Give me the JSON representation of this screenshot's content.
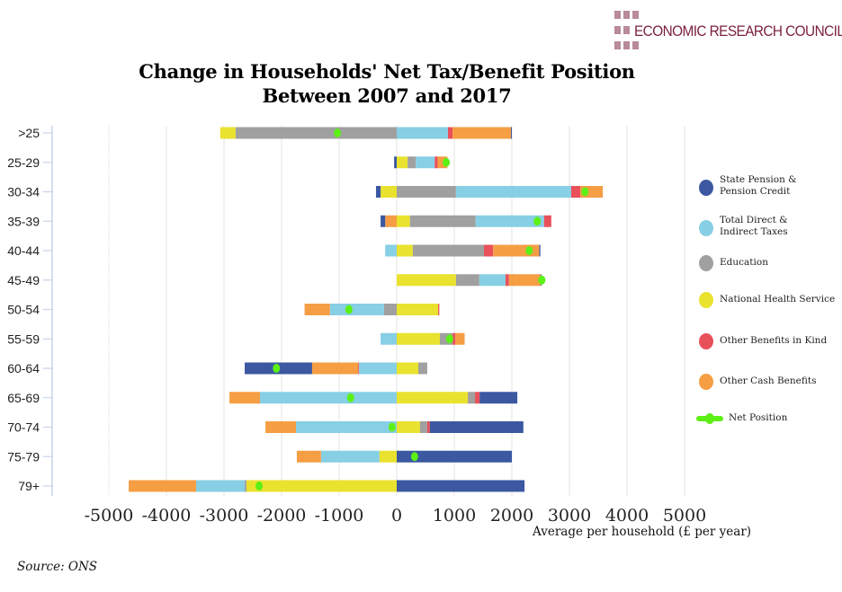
{
  "logo": {
    "text": "ECONOMIC RESEARCH COUNCIL",
    "color": "#7a1f3d"
  },
  "title_lines": [
    "Change in Households' Net Tax/Benefit Position",
    "Between 2007 and 2017"
  ],
  "source": "Source: ONS",
  "chart_data": {
    "type": "bar",
    "orientation": "horizontal-stacked-diverging",
    "title": "Change in Households' Net Tax/Benefit Position Between 2007 and 2017",
    "xlabel": "Average per household (£ per year)",
    "ylabel": "",
    "xlim": [
      -5000,
      5000
    ],
    "xticks": [
      -5000,
      -4000,
      -3000,
      -2000,
      -1000,
      0,
      1000,
      2000,
      3000,
      4000,
      5000
    ],
    "xtick_labels": [
      "-5000",
      "-4000",
      "-3000",
      "-2000",
      "-1000",
      "0",
      "1000",
      "2000",
      "3000",
      "4000",
      "5000"
    ],
    "grid": "vertical",
    "legend_position": "right",
    "categories": [
      ">25",
      "25-29",
      "30-34",
      "35-39",
      "40-44",
      "45-49",
      "50-54",
      "55-59",
      "60-64",
      "65-69",
      "70-74",
      "75-79",
      "79+"
    ],
    "series": [
      {
        "key": "pension",
        "name": "State Pension & Pension Credit",
        "label_lines": [
          "State Pension &",
          "Pension Credit"
        ],
        "color": "#3b58a0",
        "values": [
          15,
          -45,
          -80,
          -80,
          20,
          5,
          0,
          0,
          -1170,
          655,
          1625,
          2000,
          2220
        ]
      },
      {
        "key": "taxes",
        "name": "Total Direct & Indirect Taxes",
        "label_lines": [
          "Total Direct &",
          "Indirect Taxes"
        ],
        "color": "#87cfe4",
        "values": [
          890,
          330,
          2000,
          1190,
          -200,
          455,
          -940,
          -280,
          -655,
          -2375,
          -1750,
          -1015,
          -845
        ]
      },
      {
        "key": "education",
        "name": "Education",
        "label_lines": [
          "Education"
        ],
        "color": "#a0a0a0",
        "values": [
          -2800,
          140,
          1030,
          1140,
          1235,
          405,
          -220,
          220,
          155,
          125,
          125,
          0,
          -30
        ]
      },
      {
        "key": "nhs",
        "name": "National Health Service",
        "label_lines": [
          "National Health Service"
        ],
        "color": "#e9e22e",
        "values": [
          -265,
          190,
          -280,
          230,
          280,
          1030,
          720,
          750,
          375,
          1235,
          405,
          -300,
          -2610
        ]
      },
      {
        "key": "kind",
        "name": "Other Benefits in Kind",
        "label_lines": [
          "Other Benefits in Kind"
        ],
        "color": "#e8505a",
        "values": [
          80,
          50,
          160,
          125,
          160,
          60,
          20,
          50,
          -15,
          80,
          45,
          0,
          0
        ]
      },
      {
        "key": "cash",
        "name": "Other Cash Benefits",
        "label_lines": [
          "Other Cash Benefits"
        ],
        "color": "#f59e44",
        "values": [
          1015,
          170,
          390,
          -200,
          800,
          550,
          -440,
          160,
          -800,
          -530,
          -530,
          -420,
          -1170
        ]
      }
    ],
    "segment_order": [
      [
        [
          "education",
          "nhs"
        ],
        [
          "taxes",
          "kind",
          "cash",
          "pension"
        ]
      ],
      [
        [
          "pension"
        ],
        [
          "nhs",
          "education",
          "taxes",
          "kind",
          "cash"
        ]
      ],
      [
        [
          "nhs",
          "pension"
        ],
        [
          "education",
          "taxes",
          "kind",
          "cash"
        ]
      ],
      [
        [
          "cash",
          "pension"
        ],
        [
          "nhs",
          "education",
          "taxes",
          "kind"
        ]
      ],
      [
        [
          "taxes"
        ],
        [
          "nhs",
          "education",
          "kind",
          "cash",
          "pension"
        ]
      ],
      [
        [],
        [
          "nhs",
          "education",
          "taxes",
          "kind",
          "cash",
          "pension"
        ]
      ],
      [
        [
          "education",
          "taxes",
          "cash"
        ],
        [
          "nhs",
          "kind"
        ]
      ],
      [
        [
          "taxes"
        ],
        [
          "nhs",
          "education",
          "kind",
          "cash"
        ]
      ],
      [
        [
          "taxes",
          "kind",
          "cash",
          "pension"
        ],
        [
          "nhs",
          "education"
        ]
      ],
      [
        [
          "taxes",
          "cash"
        ],
        [
          "nhs",
          "education",
          "kind",
          "pension"
        ]
      ],
      [
        [
          "taxes",
          "cash"
        ],
        [
          "nhs",
          "education",
          "kind",
          "pension"
        ]
      ],
      [
        [
          "nhs",
          "taxes",
          "cash"
        ],
        [
          "pension"
        ]
      ],
      [
        [
          "nhs",
          "education",
          "taxes",
          "cash"
        ],
        [
          "pension"
        ]
      ]
    ],
    "net_position": {
      "name": "Net Position",
      "color": "#5cf015",
      "values": [
        -1030,
        860,
        3270,
        2440,
        2300,
        2520,
        -830,
        920,
        -2090,
        -800,
        -80,
        310,
        -2390
      ]
    }
  }
}
